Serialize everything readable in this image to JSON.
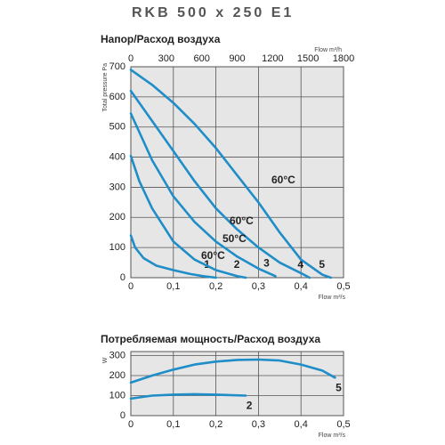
{
  "heading": "RKB 500 x 250 E1",
  "chart_data": [
    {
      "type": "line",
      "title": "Напор/Расход воздуха",
      "y_label": "Total pressure Pa",
      "x_label": "Flow m³/s",
      "x2_label": "Flow m³/h",
      "xlim": [
        0,
        0.5
      ],
      "ylim": [
        0,
        700
      ],
      "x2lim": [
        0,
        1800
      ],
      "xticks": [
        0,
        {
          "value": 0.1,
          "label": "0,1"
        },
        {
          "value": 0.2,
          "label": "0,2"
        },
        {
          "value": 0.3,
          "label": "0,3"
        },
        {
          "value": 0.4,
          "label": "0,4"
        },
        {
          "value": 0.5,
          "label": "0,5"
        }
      ],
      "yticks": [
        0,
        100,
        200,
        300,
        400,
        500,
        600,
        700
      ],
      "x2ticks": [
        0,
        300,
        600,
        900,
        1200,
        1500,
        1800
      ],
      "grid": true,
      "annotations": [
        "60°C",
        "60°C",
        "50°C",
        "60°C"
      ],
      "series": [
        {
          "name": "1",
          "color": "#1f8dc7",
          "x": [
            0,
            0.01,
            0.03,
            0.06,
            0.1,
            0.14,
            0.17,
            0.2
          ],
          "values": [
            140,
            100,
            65,
            40,
            25,
            12,
            5,
            0
          ]
        },
        {
          "name": "2",
          "color": "#1f8dc7",
          "x": [
            0,
            0.02,
            0.05,
            0.1,
            0.15,
            0.2,
            0.25,
            0.27
          ],
          "values": [
            404,
            320,
            230,
            120,
            60,
            25,
            5,
            0
          ]
        },
        {
          "name": "3",
          "color": "#1f8dc7",
          "x": [
            0,
            0.05,
            0.1,
            0.15,
            0.2,
            0.25,
            0.3,
            0.34
          ],
          "values": [
            545,
            390,
            270,
            185,
            120,
            70,
            30,
            5
          ]
        },
        {
          "name": "4",
          "color": "#1f8dc7",
          "x": [
            0,
            0.05,
            0.1,
            0.15,
            0.2,
            0.25,
            0.3,
            0.35,
            0.4,
            0.42
          ],
          "values": [
            620,
            520,
            420,
            320,
            230,
            160,
            100,
            50,
            15,
            0
          ]
        },
        {
          "name": "5",
          "color": "#1f8dc7",
          "x": [
            0,
            0.05,
            0.1,
            0.15,
            0.2,
            0.25,
            0.3,
            0.35,
            0.4,
            0.45,
            0.47
          ],
          "values": [
            690,
            640,
            580,
            510,
            430,
            340,
            250,
            150,
            60,
            10,
            0
          ]
        }
      ]
    },
    {
      "type": "line",
      "title": "Потребляемая мощность/Расход воздуха",
      "y_label": "W",
      "x_label": "Flow m³/s",
      "xlim": [
        0,
        0.5
      ],
      "ylim": [
        0,
        320
      ],
      "xticks": [
        0,
        {
          "value": 0.1,
          "label": "0,1"
        },
        {
          "value": 0.2,
          "label": "0,2"
        },
        {
          "value": 0.3,
          "label": "0,3"
        },
        {
          "value": 0.4,
          "label": "0,4"
        },
        {
          "value": 0.5,
          "label": "0,5"
        }
      ],
      "yticks": [
        0,
        100,
        200,
        300
      ],
      "grid": true,
      "series": [
        {
          "name": "5",
          "color": "#1f8dc7",
          "x": [
            0,
            0.05,
            0.1,
            0.15,
            0.2,
            0.25,
            0.3,
            0.35,
            0.4,
            0.45,
            0.48
          ],
          "values": [
            165,
            200,
            230,
            255,
            270,
            278,
            280,
            275,
            255,
            225,
            190
          ]
        },
        {
          "name": "2",
          "color": "#1f8dc7",
          "x": [
            0,
            0.05,
            0.1,
            0.15,
            0.2,
            0.27
          ],
          "values": [
            85,
            100,
            105,
            107,
            105,
            100
          ]
        }
      ]
    }
  ]
}
